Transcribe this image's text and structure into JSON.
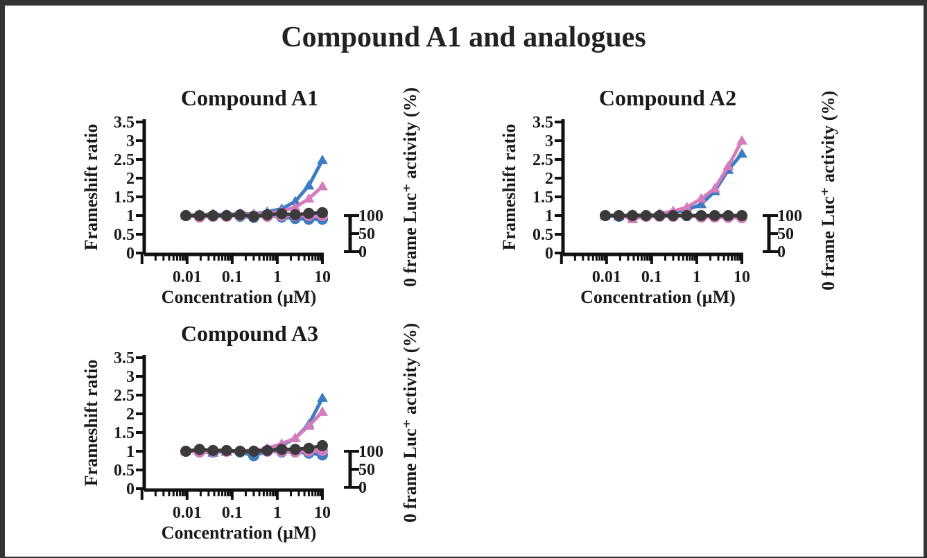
{
  "title": "Compound A1 and analogues",
  "colors": {
    "blue": "#3e7cc2",
    "pink": "#d47cbc",
    "dark": "#3a3a3a",
    "axis": "#111111"
  },
  "chart_data": [
    {
      "type": "line",
      "title": "Compound A1",
      "xlabel": "Concentration (µM)",
      "ylabel": "Frameshift ratio",
      "y2label": "0 frame Luc⁺ activity (%)",
      "xscale": "log",
      "xlim": [
        0.0005,
        10
      ],
      "ylim": [
        0,
        3.5
      ],
      "y2lim": [
        0,
        100
      ],
      "xticks": [
        "0.01",
        "0.1",
        "1",
        "10"
      ],
      "yticks": [
        "0",
        "0.5",
        "1",
        "1.5",
        "2",
        "2.5",
        "3",
        "3.5"
      ],
      "y2ticks": [
        "0",
        "50",
        "100"
      ],
      "x": [
        0.00937,
        0.0188,
        0.0375,
        0.075,
        0.15,
        0.3,
        0.6,
        1.25,
        2.5,
        5,
        10
      ],
      "series": [
        {
          "marker": "triangle",
          "color": "blue",
          "values": [
            1.0,
            1.02,
            1.04,
            1.02,
            1.05,
            1.04,
            1.1,
            1.18,
            1.38,
            1.8,
            2.48
          ]
        },
        {
          "marker": "triangle",
          "color": "pink",
          "values": [
            1.0,
            1.0,
            1.02,
            1.0,
            1.02,
            1.04,
            1.06,
            1.12,
            1.22,
            1.45,
            1.78
          ]
        },
        {
          "marker": "circle",
          "color": "blue",
          "values": [
            1.0,
            0.98,
            0.98,
            1.0,
            0.98,
            0.95,
            1.0,
            0.96,
            0.92,
            0.9,
            0.9
          ]
        },
        {
          "marker": "circle",
          "color": "pink",
          "values": [
            1.0,
            0.96,
            0.98,
            0.98,
            1.0,
            0.98,
            0.98,
            1.0,
            1.0,
            1.0,
            1.0
          ]
        },
        {
          "marker": "circle",
          "color": "dark",
          "values": [
            1.0,
            1.0,
            1.0,
            1.0,
            1.02,
            0.98,
            1.02,
            1.05,
            1.02,
            1.06,
            1.08
          ]
        }
      ]
    },
    {
      "type": "line",
      "title": "Compound A2",
      "xlabel": "Concentration (µM)",
      "ylabel": "Frameshift ratio",
      "y2label": "0 frame Luc⁺ activity (%)",
      "xscale": "log",
      "xlim": [
        0.0005,
        10
      ],
      "ylim": [
        0,
        3.5
      ],
      "y2lim": [
        0,
        100
      ],
      "xticks": [
        "0.01",
        "0.1",
        "1",
        "10"
      ],
      "yticks": [
        "0",
        "0.5",
        "1",
        "1.5",
        "2",
        "2.5",
        "3",
        "3.5"
      ],
      "y2ticks": [
        "0",
        "50",
        "100"
      ],
      "x": [
        0.00937,
        0.0188,
        0.0375,
        0.075,
        0.15,
        0.3,
        0.6,
        1.25,
        2.5,
        5,
        10
      ],
      "series": [
        {
          "marker": "triangle",
          "color": "blue",
          "values": [
            1.0,
            0.98,
            1.02,
            1.0,
            1.02,
            1.08,
            1.15,
            1.3,
            1.65,
            2.22,
            2.65
          ]
        },
        {
          "marker": "triangle",
          "color": "pink",
          "values": [
            1.0,
            1.02,
            0.9,
            1.0,
            1.05,
            1.12,
            1.22,
            1.45,
            1.72,
            2.32,
            3.0
          ]
        },
        {
          "marker": "circle",
          "color": "blue",
          "values": [
            1.0,
            0.98,
            1.0,
            0.98,
            1.0,
            0.98,
            1.0,
            1.0,
            0.98,
            0.98,
            0.98
          ]
        },
        {
          "marker": "circle",
          "color": "pink",
          "values": [
            1.0,
            1.0,
            0.96,
            0.98,
            0.98,
            0.98,
            1.0,
            0.96,
            0.96,
            0.95,
            0.94
          ]
        },
        {
          "marker": "circle",
          "color": "dark",
          "values": [
            1.0,
            1.0,
            1.0,
            1.0,
            1.0,
            1.0,
            1.0,
            1.0,
            1.0,
            1.0,
            1.0
          ]
        }
      ]
    },
    {
      "type": "line",
      "title": "Compound A3",
      "xlabel": "Concentration (µM)",
      "ylabel": "Frameshift ratio",
      "y2label": "0 frame Luc⁺ activity (%)",
      "xscale": "log",
      "xlim": [
        0.0005,
        10
      ],
      "ylim": [
        0,
        3.5
      ],
      "y2lim": [
        0,
        100
      ],
      "xticks": [
        "0.01",
        "0.1",
        "1",
        "10"
      ],
      "yticks": [
        "0",
        "0.5",
        "1",
        "1.5",
        "2",
        "2.5",
        "3",
        "3.5"
      ],
      "y2ticks": [
        "0",
        "50",
        "100"
      ],
      "x": [
        0.00937,
        0.0188,
        0.0375,
        0.075,
        0.15,
        0.3,
        0.6,
        1.25,
        2.5,
        5,
        10
      ],
      "series": [
        {
          "marker": "triangle",
          "color": "blue",
          "values": [
            1.0,
            1.0,
            0.96,
            1.0,
            1.0,
            0.98,
            1.05,
            1.15,
            1.35,
            1.72,
            2.42
          ]
        },
        {
          "marker": "triangle",
          "color": "pink",
          "values": [
            1.0,
            1.0,
            1.0,
            0.98,
            1.02,
            1.02,
            1.08,
            1.2,
            1.35,
            1.68,
            2.05
          ]
        },
        {
          "marker": "circle",
          "color": "blue",
          "values": [
            1.0,
            0.98,
            0.98,
            1.0,
            0.98,
            0.88,
            1.0,
            0.98,
            0.98,
            0.95,
            0.9
          ]
        },
        {
          "marker": "circle",
          "color": "pink",
          "values": [
            1.0,
            0.98,
            1.0,
            1.0,
            1.0,
            1.0,
            1.0,
            1.0,
            0.98,
            1.0,
            1.02
          ]
        },
        {
          "marker": "circle",
          "color": "dark",
          "values": [
            1.0,
            1.05,
            1.02,
            1.02,
            1.0,
            1.0,
            1.02,
            1.05,
            1.05,
            1.08,
            1.15
          ]
        }
      ]
    }
  ]
}
